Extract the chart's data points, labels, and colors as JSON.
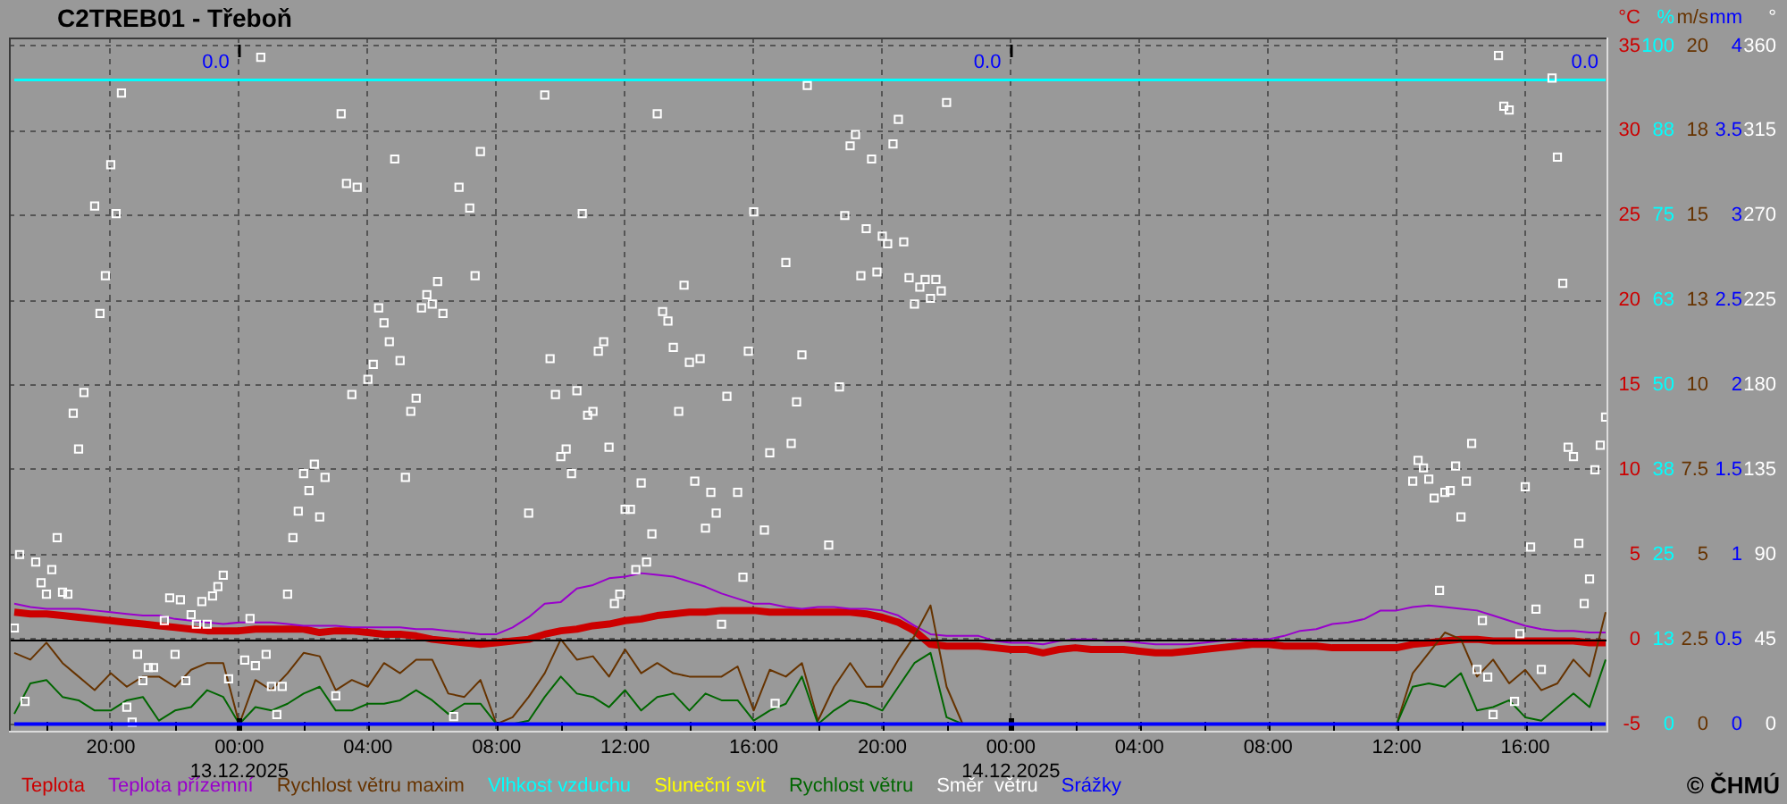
{
  "chart_data": [
    {
      "type": "line",
      "title": "C2TREB01 - Třeboň",
      "x": [
        "2025-12-12T17:00",
        "2025-12-12T17:30",
        "2025-12-12T18:00",
        "2025-12-12T18:30",
        "2025-12-12T19:00",
        "2025-12-12T19:30",
        "2025-12-12T20:00",
        "2025-12-12T20:30",
        "2025-12-12T21:00",
        "2025-12-12T21:30",
        "2025-12-12T22:00",
        "2025-12-12T22:30",
        "2025-12-12T23:00",
        "2025-12-12T23:30",
        "2025-12-13T00:00",
        "2025-12-13T00:30",
        "2025-12-13T01:00",
        "2025-12-13T01:30",
        "2025-12-13T02:00",
        "2025-12-13T02:30",
        "2025-12-13T03:00",
        "2025-12-13T03:30",
        "2025-12-13T04:00",
        "2025-12-13T04:30",
        "2025-12-13T05:00",
        "2025-12-13T05:30",
        "2025-12-13T06:00",
        "2025-12-13T06:30",
        "2025-12-13T07:00",
        "2025-12-13T07:30",
        "2025-12-13T08:00",
        "2025-12-13T08:30",
        "2025-12-13T09:00",
        "2025-12-13T09:30",
        "2025-12-13T10:00",
        "2025-12-13T10:30",
        "2025-12-13T11:00",
        "2025-12-13T11:30",
        "2025-12-13T12:00",
        "2025-12-13T12:30",
        "2025-12-13T13:00",
        "2025-12-13T13:30",
        "2025-12-13T14:00",
        "2025-12-13T14:30",
        "2025-12-13T15:00",
        "2025-12-13T15:30",
        "2025-12-13T16:00",
        "2025-12-13T16:30",
        "2025-12-13T17:00",
        "2025-12-13T17:30",
        "2025-12-13T18:00",
        "2025-12-13T18:30",
        "2025-12-13T19:00",
        "2025-12-13T19:30",
        "2025-12-13T20:00",
        "2025-12-13T20:30",
        "2025-12-13T21:00",
        "2025-12-13T21:30",
        "2025-12-13T22:00",
        "2025-12-13T22:30",
        "2025-12-13T23:00",
        "2025-12-13T23:30",
        "2025-12-14T00:00",
        "2025-12-14T00:30",
        "2025-12-14T01:00",
        "2025-12-14T01:30",
        "2025-12-14T02:00",
        "2025-12-14T02:30",
        "2025-12-14T03:00",
        "2025-12-14T03:30",
        "2025-12-14T04:00",
        "2025-12-14T04:30",
        "2025-12-14T05:00",
        "2025-12-14T05:30",
        "2025-12-14T06:00",
        "2025-12-14T06:30",
        "2025-12-14T07:00",
        "2025-12-14T07:30",
        "2025-12-14T08:00",
        "2025-12-14T08:30",
        "2025-12-14T09:00",
        "2025-12-14T09:30",
        "2025-12-14T10:00",
        "2025-12-14T10:30",
        "2025-12-14T11:00",
        "2025-12-14T11:30",
        "2025-12-14T12:00",
        "2025-12-14T12:30",
        "2025-12-14T13:00",
        "2025-12-14T13:30",
        "2025-12-14T14:00",
        "2025-12-14T14:30",
        "2025-12-14T15:00",
        "2025-12-14T15:30",
        "2025-12-14T16:00",
        "2025-12-14T16:30",
        "2025-12-14T17:00",
        "2025-12-14T17:30",
        "2025-12-14T18:00",
        "2025-12-14T18:30"
      ],
      "series": [
        {
          "name": "Teplota",
          "color": "#cc0000",
          "values": [
            1.6,
            1.5,
            1.5,
            1.4,
            1.3,
            1.2,
            1.1,
            1.0,
            0.9,
            0.8,
            0.7,
            0.6,
            0.5,
            0.5,
            0.5,
            0.6,
            0.6,
            0.6,
            0.6,
            0.4,
            0.5,
            0.5,
            0.4,
            0.3,
            0.3,
            0.2,
            0,
            -0.1,
            -0.2,
            -0.3,
            -0.2,
            -0.1,
            0,
            0.3,
            0.5,
            0.6,
            0.8,
            0.9,
            1.1,
            1.2,
            1.4,
            1.5,
            1.6,
            1.6,
            1.7,
            1.7,
            1.7,
            1.6,
            1.6,
            1.6,
            1.6,
            1.6,
            1.6,
            1.5,
            1.3,
            1.0,
            0.5,
            -0.3,
            -0.4,
            -0.4,
            -0.4,
            -0.5,
            -0.6,
            -0.6,
            -0.8,
            -0.6,
            -0.5,
            -0.6,
            -0.6,
            -0.6,
            -0.7,
            -0.8,
            -0.8,
            -0.7,
            -0.6,
            -0.5,
            -0.4,
            -0.3,
            -0.3,
            -0.4,
            -0.4,
            -0.4,
            -0.5,
            -0.5,
            -0.5,
            -0.5,
            -0.5,
            -0.3,
            -0.2,
            -0.1,
            0,
            0,
            -0.1,
            -0.1,
            -0.1,
            -0.1,
            -0.1,
            -0.1,
            -0.2,
            -0.2
          ]
        },
        {
          "name": "Teplota přízemní",
          "color": "#9900cc",
          "values": [
            2.1,
            1.9,
            1.8,
            1.8,
            1.8,
            1.7,
            1.6,
            1.5,
            1.4,
            1.4,
            1.2,
            1.1,
            1.0,
            0.9,
            1.0,
            1.0,
            1.0,
            0.9,
            0.8,
            0.8,
            0.8,
            0.7,
            0.7,
            0.7,
            0.7,
            0.6,
            0.6,
            0.5,
            0.4,
            0.3,
            0.3,
            0.7,
            1.3,
            2.1,
            2.2,
            3.0,
            3.2,
            3.6,
            3.7,
            3.9,
            3.8,
            3.7,
            3.4,
            3.1,
            2.7,
            2.4,
            2.1,
            2.1,
            1.9,
            1.8,
            1.9,
            1.9,
            1.8,
            1.8,
            1.7,
            1.4,
            0.8,
            0.3,
            0.2,
            0.2,
            0.2,
            -0.1,
            -0.2,
            -0.2,
            -0.3,
            -0.1,
            0,
            0,
            -0.1,
            -0.1,
            -0.2,
            -0.3,
            -0.3,
            -0.3,
            -0.2,
            -0.1,
            0,
            0,
            0,
            0.2,
            0.5,
            0.6,
            0.9,
            1.0,
            1.2,
            1.7,
            1.7,
            1.9,
            2.0,
            1.9,
            1.8,
            1.7,
            1.4,
            1.1,
            0.8,
            0.6,
            0.5,
            0.5,
            0.4,
            0.4
          ]
        },
        {
          "name": "Rychlost větru maxim",
          "color": "#663300",
          "axis": "y3",
          "values": [
            2.1,
            1.9,
            2.4,
            1.8,
            1.4,
            1.0,
            1.5,
            1.1,
            1.4,
            1.4,
            1.1,
            1.6,
            1.8,
            1.8,
            0,
            1.3,
            1.0,
            1.5,
            2.1,
            2.0,
            1.0,
            1.3,
            1.1,
            1.8,
            1.5,
            1.9,
            1.9,
            0.9,
            0.8,
            1.3,
            0,
            0.2,
            0.8,
            1.5,
            2.5,
            1.9,
            2.0,
            1.4,
            2.2,
            1.5,
            1.8,
            1.5,
            1.4,
            1.4,
            1.4,
            1.7,
            0.4,
            1.6,
            1.4,
            1.8,
            0.1,
            1.1,
            1.8,
            1.1,
            1.1,
            1.9,
            2.6,
            3.5,
            1.1,
            0,
            null,
            null,
            null,
            null,
            null,
            null,
            null,
            null,
            null,
            null,
            null,
            null,
            null,
            null,
            null,
            null,
            null,
            null,
            null,
            null,
            null,
            null,
            null,
            null,
            null,
            null,
            0,
            1.5,
            2.1,
            2.7,
            2.5,
            1.4,
            1.9,
            1.2,
            1.6,
            1.0,
            1.2,
            1.9,
            1.4,
            3.3
          ]
        },
        {
          "name": "Vlhkost vzduchu",
          "color": "#00ffff",
          "axis": "y2",
          "x": [
            "2025-12-12T17:00",
            "2025-12-14T18:30"
          ],
          "values": [
            95,
            95
          ]
        },
        {
          "name": "Sluneční svit",
          "color": "#ffff00",
          "values": [
            null,
            null,
            null,
            null,
            null,
            null,
            null,
            null,
            null,
            null,
            null,
            null,
            null,
            null,
            null,
            null,
            null,
            null,
            null,
            null,
            null,
            null,
            null,
            null,
            null,
            null,
            null,
            null,
            null,
            null,
            null,
            null,
            null,
            null,
            null,
            null,
            null,
            null,
            null,
            null,
            null,
            null,
            null,
            null,
            null,
            null,
            null,
            null,
            null,
            null,
            null,
            null,
            null,
            null,
            null,
            null,
            null,
            null,
            null,
            null,
            null,
            null,
            null,
            null,
            null,
            null,
            null,
            null,
            null,
            null,
            null,
            null,
            null,
            null,
            null,
            null,
            null,
            null,
            null,
            null,
            null,
            null,
            null,
            null,
            null,
            null,
            null,
            null,
            null,
            null,
            null,
            null,
            null,
            null,
            null,
            null,
            null,
            null,
            null,
            null
          ]
        },
        {
          "name": "Rychlost větru",
          "color": "#006600",
          "axis": "y3",
          "values": [
            0.3,
            1.2,
            1.3,
            0.8,
            0.7,
            0.4,
            0.4,
            0.7,
            0.8,
            0.1,
            0.4,
            0.5,
            1.0,
            0.8,
            0,
            0.5,
            0.4,
            0.6,
            0.9,
            1.1,
            0.4,
            0.4,
            0.6,
            0.6,
            0.7,
            1.0,
            0.7,
            0.3,
            0.6,
            0.6,
            0,
            0,
            0.1,
            0.8,
            1.4,
            0.9,
            0.8,
            0.5,
            1.0,
            0.4,
            0.8,
            0.9,
            0.4,
            0.9,
            0.7,
            0.7,
            0.1,
            0.4,
            0.6,
            1.4,
            0,
            0.4,
            0.7,
            0.6,
            0.4,
            1.1,
            1.8,
            2.1,
            0.2,
            0,
            null,
            null,
            null,
            null,
            null,
            null,
            null,
            null,
            null,
            null,
            null,
            null,
            null,
            null,
            null,
            null,
            null,
            null,
            null,
            null,
            null,
            null,
            null,
            null,
            null,
            null,
            0,
            1.1,
            1.2,
            1.1,
            1.5,
            0.4,
            0.5,
            0.7,
            0.2,
            0.1,
            0.5,
            0.9,
            0.5,
            1.9
          ]
        }
      ],
      "xlim": [
        "2025-12-12T16:50",
        "2025-12-14T18:35"
      ],
      "xticks": [
        {
          "value": "2025-12-12T18:00",
          "label": null
        },
        {
          "value": "2025-12-12T20:00",
          "label": "20:00"
        },
        {
          "value": "2025-12-12T22:00",
          "label": null
        },
        {
          "value": "2025-12-13T00:00",
          "label": "00:00\n13.12.2025"
        },
        {
          "value": "2025-12-13T02:00",
          "label": null
        },
        {
          "value": "2025-12-13T04:00",
          "label": "04:00"
        },
        {
          "value": "2025-12-13T06:00",
          "label": null
        },
        {
          "value": "2025-12-13T08:00",
          "label": "08:00"
        },
        {
          "value": "2025-12-13T10:00",
          "label": null
        },
        {
          "value": "2025-12-13T12:00",
          "label": "12:00"
        },
        {
          "value": "2025-12-13T14:00",
          "label": null
        },
        {
          "value": "2025-12-13T16:00",
          "label": "16:00"
        },
        {
          "value": "2025-12-13T18:00",
          "label": null
        },
        {
          "value": "2025-12-13T20:00",
          "label": "20:00"
        },
        {
          "value": "2025-12-13T22:00",
          "label": null
        },
        {
          "value": "2025-12-14T00:00",
          "label": "00:00\n14.12.2025"
        },
        {
          "value": "2025-12-14T02:00",
          "label": null
        },
        {
          "value": "2025-12-14T04:00",
          "label": "04:00"
        },
        {
          "value": "2025-12-14T06:00",
          "label": null
        },
        {
          "value": "2025-12-14T08:00",
          "label": "08:00"
        },
        {
          "value": "2025-12-14T10:00",
          "label": null
        },
        {
          "value": "2025-12-14T12:00",
          "label": "12:00"
        },
        {
          "value": "2025-12-14T14:00",
          "label": null
        },
        {
          "value": "2025-12-14T16:00",
          "label": "16:00"
        },
        {
          "value": "2025-12-14T18:00",
          "label": null
        }
      ],
      "ylabel": "°C",
      "ylim": [
        -5.5,
        35.5
      ],
      "yticks": [
        -5,
        0,
        5,
        10,
        15,
        20,
        25,
        30,
        35
      ],
      "y2label": "%",
      "y2lim": [
        -1.25,
        101.25
      ],
      "y2ticks": [
        0,
        {
          "value": 12.5,
          "label": "13"
        },
        25,
        {
          "value": 37.5,
          "label": "38"
        },
        50,
        {
          "value": 62.5,
          "label": "63"
        },
        75,
        {
          "value": 87.5,
          "label": "88"
        },
        100
      ],
      "y3label": "m/s",
      "y3lim": [
        -0.25,
        20.25
      ],
      "y3ticks": [
        0,
        2.5,
        5,
        7.5,
        10,
        {
          "value": 12.5,
          "label": "13"
        },
        15,
        {
          "value": 17.5,
          "label": "18"
        },
        20
      ],
      "ref_lines": [
        {
          "axis": "y",
          "value": 0,
          "color": "#000000"
        }
      ],
      "annotations": [
        "© ČHMÚ"
      ],
      "grid": true,
      "legend": "bottom"
    },
    {
      "type": "line",
      "tick_labels": "y",
      "legend": "bottom",
      "series": [
        {
          "name": "Směr  větru",
          "color": "#ffffff",
          "type": "scatter",
          "marker": "square",
          "axis": "y2",
          "x": [
            "2025-12-12T17:00",
            "2025-12-12T17:10",
            "2025-12-12T17:20",
            "2025-12-12T17:40",
            "2025-12-12T17:50",
            "2025-12-12T18:00",
            "2025-12-12T18:10",
            "2025-12-12T18:20",
            "2025-12-12T18:30",
            "2025-12-12T18:40",
            "2025-12-12T18:50",
            "2025-12-12T19:00",
            "2025-12-12T19:10",
            "2025-12-12T19:30",
            "2025-12-12T19:40",
            "2025-12-12T19:50",
            "2025-12-12T20:00",
            "2025-12-12T20:10",
            "2025-12-12T20:20",
            "2025-12-12T20:30",
            "2025-12-12T20:40",
            "2025-12-12T20:50",
            "2025-12-12T21:00",
            "2025-12-12T21:10",
            "2025-12-12T21:20",
            "2025-12-12T21:40",
            "2025-12-12T21:50",
            "2025-12-12T22:00",
            "2025-12-12T22:10",
            "2025-12-12T22:20",
            "2025-12-12T22:30",
            "2025-12-12T22:40",
            "2025-12-12T22:50",
            "2025-12-12T23:00",
            "2025-12-12T23:10",
            "2025-12-12T23:20",
            "2025-12-12T23:30",
            "2025-12-12T23:40",
            "2025-12-13T00:10",
            "2025-12-13T00:20",
            "2025-12-13T00:30",
            "2025-12-13T00:40",
            "2025-12-13T00:50",
            "2025-12-13T01:00",
            "2025-12-13T01:10",
            "2025-12-13T01:20",
            "2025-12-13T01:30",
            "2025-12-13T01:40",
            "2025-12-13T01:50",
            "2025-12-13T02:00",
            "2025-12-13T02:10",
            "2025-12-13T02:20",
            "2025-12-13T02:30",
            "2025-12-13T02:40",
            "2025-12-13T03:00",
            "2025-12-13T03:10",
            "2025-12-13T03:20",
            "2025-12-13T03:30",
            "2025-12-13T03:40",
            "2025-12-13T04:00",
            "2025-12-13T04:10",
            "2025-12-13T04:20",
            "2025-12-13T04:30",
            "2025-12-13T04:40",
            "2025-12-13T04:50",
            "2025-12-13T05:00",
            "2025-12-13T05:10",
            "2025-12-13T05:20",
            "2025-12-13T05:30",
            "2025-12-13T05:40",
            "2025-12-13T05:50",
            "2025-12-13T06:00",
            "2025-12-13T06:10",
            "2025-12-13T06:20",
            "2025-12-13T06:40",
            "2025-12-13T06:50",
            "2025-12-13T07:10",
            "2025-12-13T07:20",
            "2025-12-13T07:30",
            "2025-12-13T09:00",
            "2025-12-13T09:30",
            "2025-12-13T09:40",
            "2025-12-13T09:50",
            "2025-12-13T10:00",
            "2025-12-13T10:10",
            "2025-12-13T10:20",
            "2025-12-13T10:30",
            "2025-12-13T10:40",
            "2025-12-13T10:50",
            "2025-12-13T11:00",
            "2025-12-13T11:10",
            "2025-12-13T11:20",
            "2025-12-13T11:30",
            "2025-12-13T11:40",
            "2025-12-13T11:50",
            "2025-12-13T12:00",
            "2025-12-13T12:10",
            "2025-12-13T12:20",
            "2025-12-13T12:30",
            "2025-12-13T12:40",
            "2025-12-13T12:50",
            "2025-12-13T13:00",
            "2025-12-13T13:10",
            "2025-12-13T13:20",
            "2025-12-13T13:30",
            "2025-12-13T13:40",
            "2025-12-13T13:50",
            "2025-12-13T14:00",
            "2025-12-13T14:10",
            "2025-12-13T14:20",
            "2025-12-13T14:30",
            "2025-12-13T14:40",
            "2025-12-13T14:50",
            "2025-12-13T15:00",
            "2025-12-13T15:10",
            "2025-12-13T15:30",
            "2025-12-13T15:40",
            "2025-12-13T15:50",
            "2025-12-13T16:00",
            "2025-12-13T16:20",
            "2025-12-13T16:30",
            "2025-12-13T16:40",
            "2025-12-13T17:00",
            "2025-12-13T17:10",
            "2025-12-13T17:20",
            "2025-12-13T17:30",
            "2025-12-13T17:40",
            "2025-12-13T18:20",
            "2025-12-13T18:40",
            "2025-12-13T18:50",
            "2025-12-13T19:00",
            "2025-12-13T19:10",
            "2025-12-13T19:20",
            "2025-12-13T19:30",
            "2025-12-13T19:40",
            "2025-12-13T19:50",
            "2025-12-13T20:00",
            "2025-12-13T20:10",
            "2025-12-13T20:20",
            "2025-12-13T20:30",
            "2025-12-13T20:40",
            "2025-12-13T20:50",
            "2025-12-13T21:00",
            "2025-12-13T21:10",
            "2025-12-13T21:20",
            "2025-12-13T21:30",
            "2025-12-13T21:40",
            "2025-12-13T21:50",
            "2025-12-13T22:00",
            "2025-12-14T12:30",
            "2025-12-14T12:40",
            "2025-12-14T12:50",
            "2025-12-14T13:00",
            "2025-12-14T13:10",
            "2025-12-14T13:20",
            "2025-12-14T13:30",
            "2025-12-14T13:40",
            "2025-12-14T13:50",
            "2025-12-14T14:00",
            "2025-12-14T14:10",
            "2025-12-14T14:20",
            "2025-12-14T14:30",
            "2025-12-14T14:40",
            "2025-12-14T14:50",
            "2025-12-14T15:00",
            "2025-12-14T15:10",
            "2025-12-14T15:20",
            "2025-12-14T15:30",
            "2025-12-14T15:40",
            "2025-12-14T15:50",
            "2025-12-14T16:00",
            "2025-12-14T16:10",
            "2025-12-14T16:20",
            "2025-12-14T16:30",
            "2025-12-14T16:50",
            "2025-12-14T17:00",
            "2025-12-14T17:10",
            "2025-12-14T17:20",
            "2025-12-14T17:30",
            "2025-12-14T17:40",
            "2025-12-14T17:50",
            "2025-12-14T18:00",
            "2025-12-14T18:10",
            "2025-12-14T18:20",
            "2025-12-14T18:30"
          ],
          "values": [
            51,
            90,
            12,
            86,
            75,
            69,
            82,
            99,
            70,
            69,
            165,
            146,
            176,
            275,
            218,
            238,
            297,
            271,
            335,
            9,
            1,
            37,
            23,
            30,
            30,
            55,
            67,
            37,
            66,
            23,
            58,
            53,
            65,
            53,
            68,
            73,
            79,
            24,
            34,
            56,
            31,
            354,
            37,
            20,
            5,
            20,
            69,
            99,
            113,
            133,
            124,
            138,
            110,
            131,
            15,
            324,
            287,
            175,
            285,
            183,
            191,
            221,
            213,
            203,
            300,
            193,
            131,
            166,
            173,
            221,
            228,
            223,
            235,
            218,
            4,
            285,
            274,
            238,
            304,
            112,
            334,
            194,
            175,
            142,
            146,
            133,
            177,
            271,
            164,
            166,
            198,
            203,
            147,
            64,
            69,
            114,
            114,
            82,
            128,
            86,
            101,
            324,
            219,
            214,
            200,
            166,
            233,
            192,
            129,
            194,
            104,
            123,
            112,
            53,
            174,
            123,
            78,
            198,
            272,
            103,
            144,
            11,
            245,
            149,
            171,
            196,
            339,
            95,
            179,
            270,
            307,
            313,
            238,
            263,
            300,
            240,
            259,
            255,
            308,
            321,
            256,
            237,
            223,
            232,
            236,
            226,
            236,
            230,
            330,
            129,
            140,
            136,
            130,
            120,
            71,
            123,
            124,
            137,
            110,
            129,
            149,
            29,
            55,
            25,
            5,
            355,
            328,
            326,
            12,
            48,
            126,
            94,
            61,
            29,
            343,
            301,
            234,
            147,
            142,
            96,
            64,
            77,
            135,
            148,
            163
          ]
        },
        {
          "name": "Srážky",
          "color": "#0000ff",
          "x": [
            "2025-12-12T17:00",
            "2025-12-14T18:30"
          ],
          "values": [
            0,
            0
          ]
        }
      ],
      "xlim": [
        "2025-12-12T16:50",
        "2025-12-14T18:35"
      ],
      "ylabel": "mm",
      "ylim": [
        -0.05,
        4.05
      ],
      "yticks": [
        0,
        0.5,
        1,
        1.5,
        2,
        2.5,
        3,
        3.5,
        4
      ],
      "y2label": "°",
      "y2lim": [
        -4.5,
        364.5
      ],
      "y2ticks": [
        0,
        45,
        90,
        135,
        180,
        225,
        270,
        315,
        360
      ],
      "annotations": [
        "0.0",
        "0.0",
        "0.0"
      ]
    }
  ]
}
